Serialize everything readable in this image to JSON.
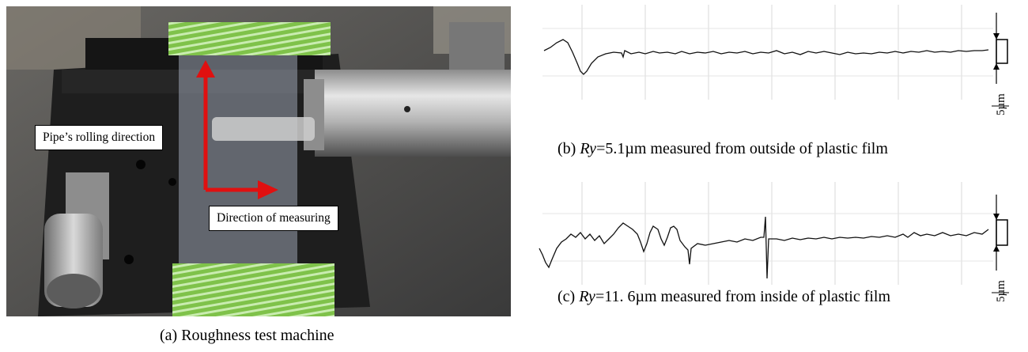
{
  "figure": {
    "panel_a": {
      "callouts": {
        "rolling_direction": "Pipe’s rolling direction",
        "measuring_direction": "Direction of measuring"
      },
      "caption": "(a) Roughness test machine"
    },
    "panel_b": {
      "caption_prefix": "(b) ",
      "ry_symbol": "Ry",
      "caption_suffix": "=5.1µm measured from outside of plastic film",
      "scale_label": "5µm"
    },
    "panel_c": {
      "caption_prefix": "(c) ",
      "ry_symbol": "Ry",
      "caption_suffix": "=11. 6µm measured from inside of plastic film",
      "scale_label": "5µm"
    }
  },
  "colors": {
    "arrow": "#e01010",
    "tape_green": "#7fc24a",
    "trace_ink": "#111111",
    "grid": "#d9d9d9"
  }
}
